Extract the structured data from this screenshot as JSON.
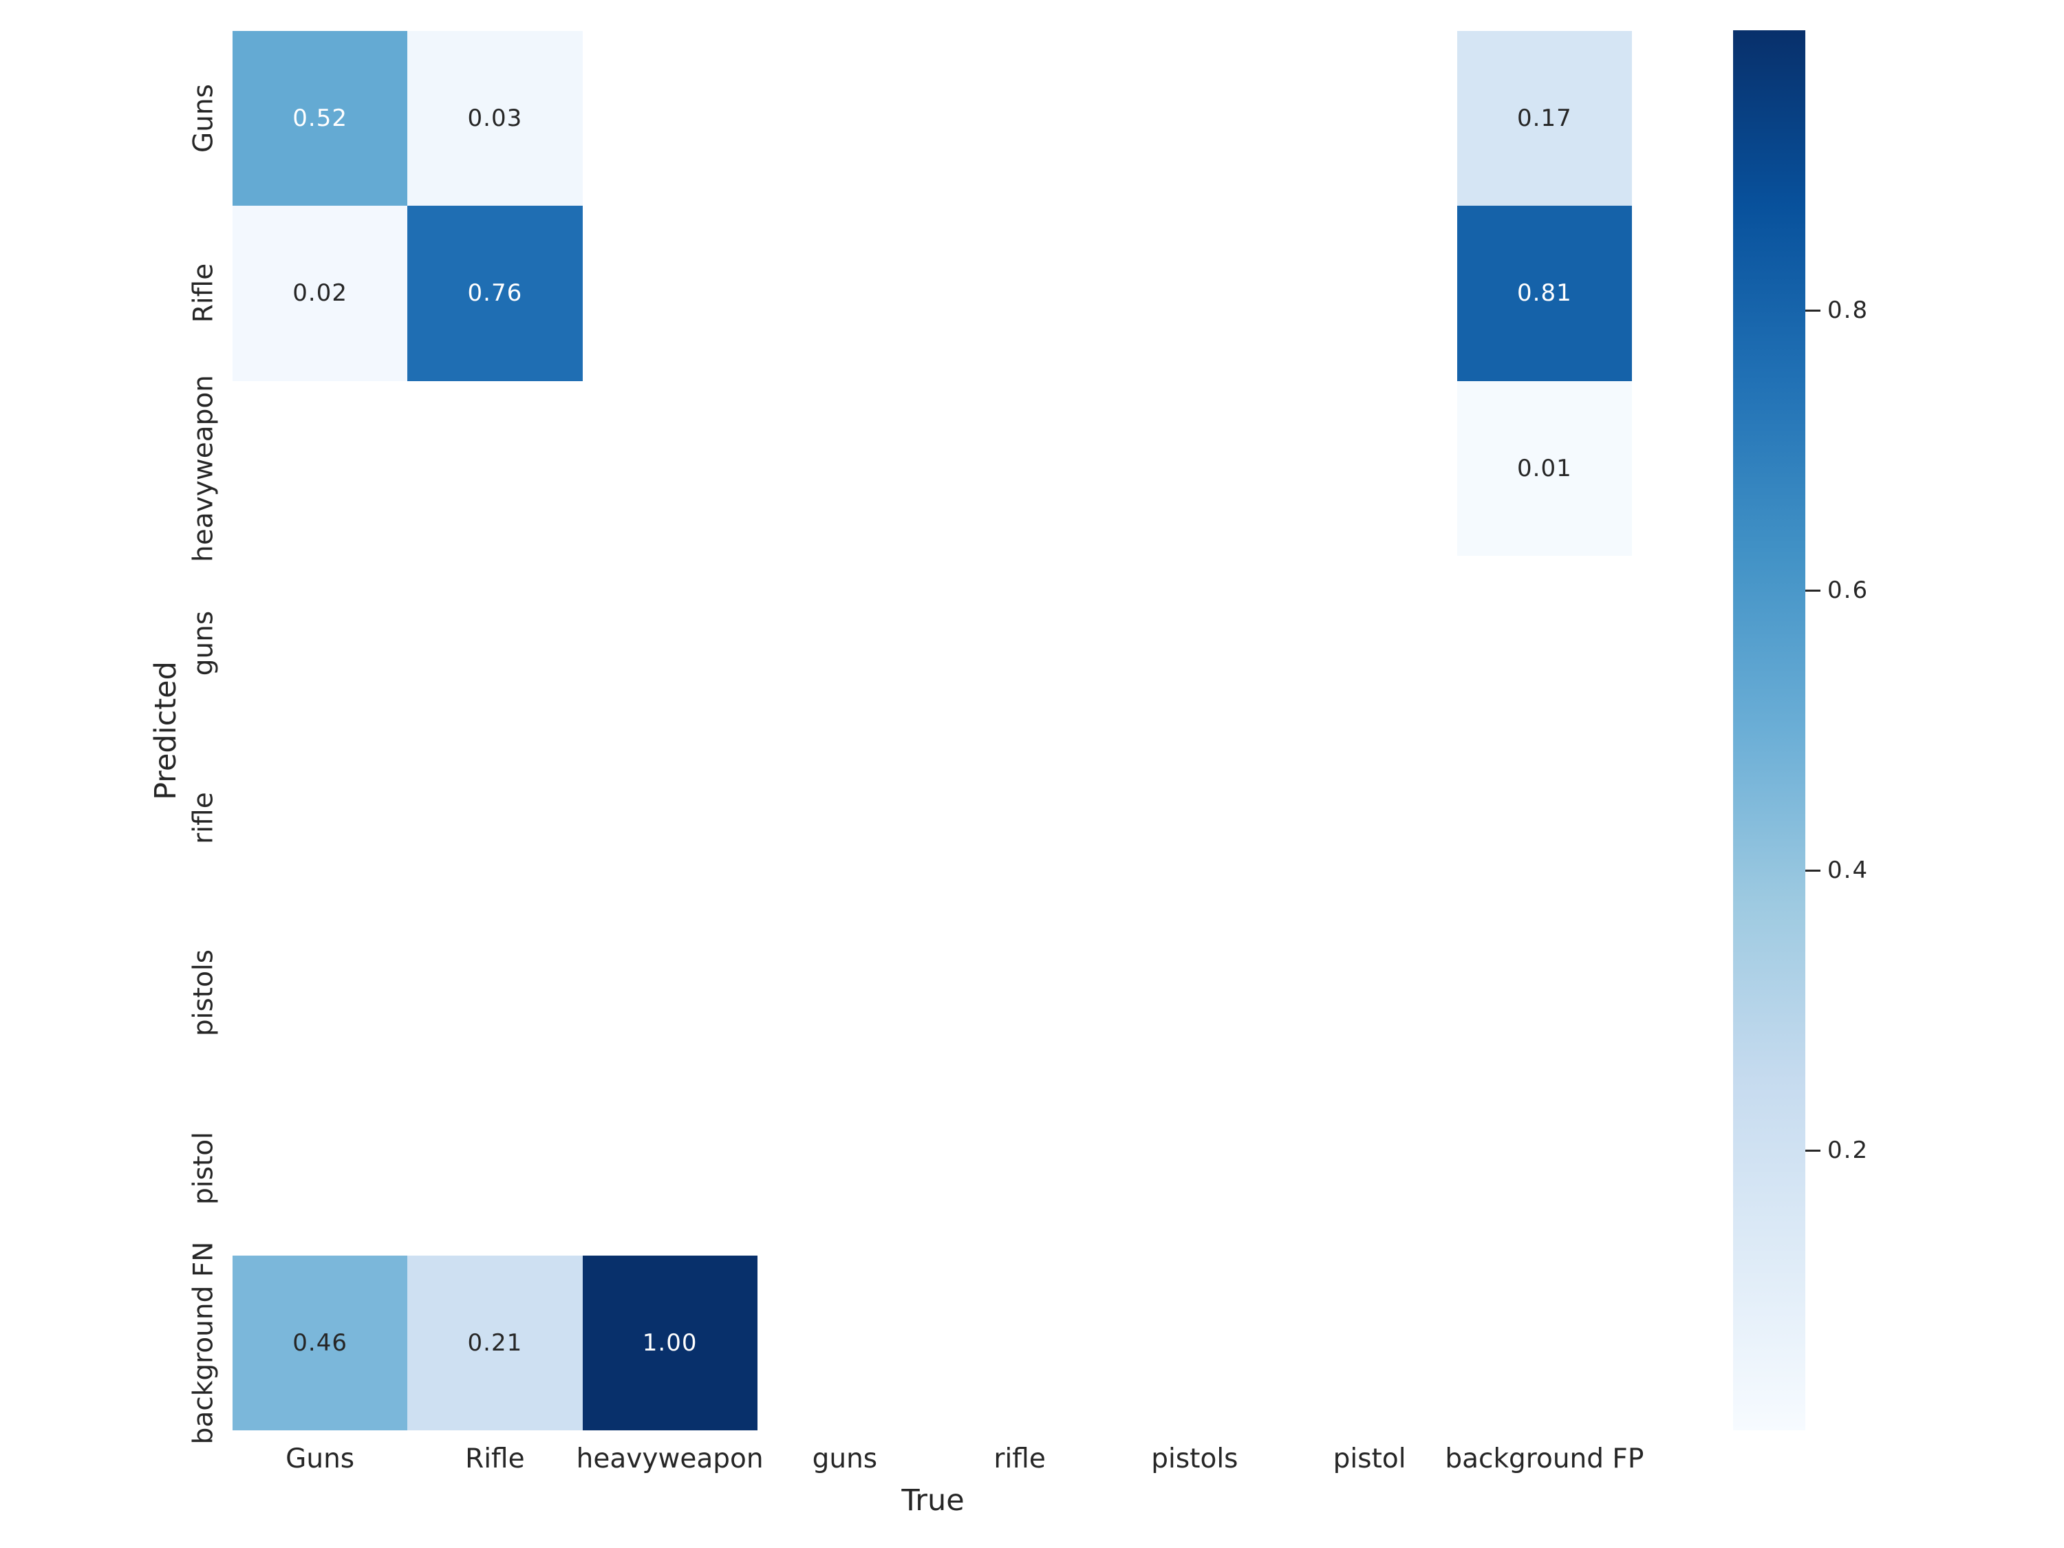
{
  "figure": {
    "background": "#ffffff",
    "x_axis_title": "True",
    "y_axis_title": "Predicted"
  },
  "chart_data": {
    "type": "heatmap",
    "title": "",
    "xlabel": "True",
    "ylabel": "Predicted",
    "x_categories": [
      "Guns",
      "Rifle",
      "heavyweapon",
      "guns",
      "rifle",
      "pistols",
      "pistol",
      "background FP"
    ],
    "y_categories": [
      "Guns",
      "Rifle",
      "heavyweapon",
      "guns",
      "rifle",
      "pistols",
      "pistol",
      "background FN"
    ],
    "matrix": [
      [
        0.52,
        0.03,
        null,
        null,
        null,
        null,
        null,
        0.17
      ],
      [
        0.02,
        0.76,
        null,
        null,
        null,
        null,
        null,
        0.81
      ],
      [
        null,
        null,
        null,
        null,
        null,
        null,
        null,
        0.01
      ],
      [
        null,
        null,
        null,
        null,
        null,
        null,
        null,
        null
      ],
      [
        null,
        null,
        null,
        null,
        null,
        null,
        null,
        null
      ],
      [
        null,
        null,
        null,
        null,
        null,
        null,
        null,
        null
      ],
      [
        null,
        null,
        null,
        null,
        null,
        null,
        null,
        null
      ],
      [
        0.46,
        0.21,
        1.0,
        null,
        null,
        null,
        null,
        null
      ]
    ],
    "annotations": [
      {
        "row": "Guns",
        "col": "Guns",
        "label": "0.52"
      },
      {
        "row": "Guns",
        "col": "Rifle",
        "label": "0.03"
      },
      {
        "row": "Guns",
        "col": "background FP",
        "label": "0.17"
      },
      {
        "row": "Rifle",
        "col": "Guns",
        "label": "0.02"
      },
      {
        "row": "Rifle",
        "col": "Rifle",
        "label": "0.76"
      },
      {
        "row": "Rifle",
        "col": "background FP",
        "label": "0.81"
      },
      {
        "row": "heavyweapon",
        "col": "background FP",
        "label": "0.01"
      },
      {
        "row": "background FN",
        "col": "Guns",
        "label": "0.46"
      },
      {
        "row": "background FN",
        "col": "Rifle",
        "label": "0.21"
      },
      {
        "row": "background FN",
        "col": "heavyweapon",
        "label": "1.00"
      }
    ],
    "vmin": 0.0,
    "vmax": 1.0,
    "grid": false,
    "legend_position": "colorbar-right",
    "colorbar": {
      "ticks": [
        0.2,
        0.4,
        0.6,
        0.8
      ],
      "tick_labels": [
        "0.2",
        "0.4",
        "0.6",
        "0.8"
      ]
    },
    "colormap_name": "Blues",
    "colormap_anchors": [
      "#f7fbff",
      "#deebf7",
      "#c6dbef",
      "#9ecae1",
      "#6baed6",
      "#4292c6",
      "#2171b5",
      "#08519c",
      "#08306b"
    ],
    "masked_cell_color": "#ffffff",
    "annot_color_dark": "#262626",
    "annot_color_light": "#ffffff",
    "tick_color": "#262626"
  }
}
